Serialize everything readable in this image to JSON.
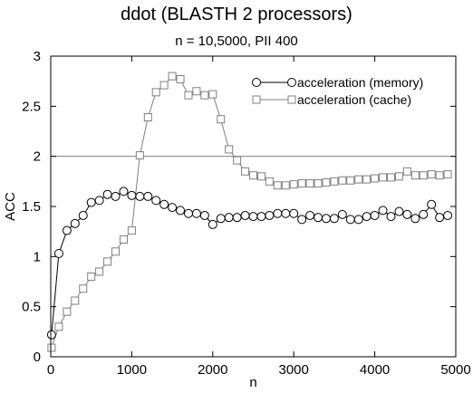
{
  "chart_data": {
    "type": "line",
    "title": "ddot (BLASTH 2 processors)",
    "subtitle": "n = 10,5000, PII 400",
    "xlabel": "n",
    "ylabel": "ACC",
    "xlim": [
      0,
      5000
    ],
    "ylim": [
      0,
      3
    ],
    "xticks": [
      0,
      1000,
      2000,
      3000,
      4000,
      5000
    ],
    "yticks": [
      0,
      0.5,
      1,
      1.5,
      2,
      2.5,
      3
    ],
    "xtick_labels": [
      "0",
      "1000",
      "2000",
      "3000",
      "4000",
      "5000"
    ],
    "ytick_labels": [
      "0",
      "0.5",
      "1",
      "1.5",
      "2",
      "2.5",
      "3"
    ],
    "grid": false,
    "reference_line": 2,
    "legend_position": "top-right",
    "series": [
      {
        "name": "acceleration (memory)",
        "marker": "circle",
        "color": "#000000",
        "x": [
          10,
          100,
          200,
          300,
          400,
          500,
          600,
          700,
          800,
          900,
          1000,
          1100,
          1200,
          1300,
          1400,
          1500,
          1600,
          1700,
          1800,
          1900,
          2000,
          2100,
          2200,
          2300,
          2400,
          2500,
          2600,
          2700,
          2800,
          2900,
          3000,
          3100,
          3200,
          3300,
          3400,
          3500,
          3600,
          3700,
          3800,
          3900,
          4000,
          4100,
          4200,
          4300,
          4400,
          4500,
          4600,
          4700,
          4800,
          4900
        ],
        "y": [
          0.22,
          1.03,
          1.26,
          1.33,
          1.41,
          1.54,
          1.56,
          1.62,
          1.6,
          1.65,
          1.61,
          1.6,
          1.6,
          1.56,
          1.52,
          1.49,
          1.46,
          1.43,
          1.43,
          1.41,
          1.32,
          1.38,
          1.39,
          1.39,
          1.41,
          1.4,
          1.4,
          1.41,
          1.43,
          1.43,
          1.43,
          1.37,
          1.41,
          1.39,
          1.38,
          1.38,
          1.42,
          1.37,
          1.37,
          1.4,
          1.41,
          1.46,
          1.4,
          1.45,
          1.42,
          1.38,
          1.42,
          1.52,
          1.39,
          1.41
        ]
      },
      {
        "name": "acceleration (cache)",
        "marker": "square",
        "color": "#808080",
        "x": [
          10,
          100,
          200,
          300,
          400,
          500,
          600,
          700,
          800,
          900,
          1000,
          1100,
          1200,
          1300,
          1400,
          1500,
          1600,
          1700,
          1800,
          1900,
          2000,
          2100,
          2200,
          2300,
          2400,
          2500,
          2600,
          2700,
          2800,
          2900,
          3000,
          3100,
          3200,
          3300,
          3400,
          3500,
          3600,
          3700,
          3800,
          3900,
          4000,
          4100,
          4200,
          4300,
          4400,
          4500,
          4600,
          4700,
          4800,
          4900
        ],
        "y": [
          0.09,
          0.3,
          0.45,
          0.56,
          0.68,
          0.8,
          0.85,
          0.95,
          1.05,
          1.17,
          1.26,
          2.01,
          2.39,
          2.64,
          2.71,
          2.8,
          2.77,
          2.61,
          2.65,
          2.61,
          2.62,
          2.37,
          2.07,
          1.96,
          1.85,
          1.81,
          1.8,
          1.75,
          1.71,
          1.71,
          1.72,
          1.73,
          1.73,
          1.73,
          1.74,
          1.75,
          1.76,
          1.76,
          1.77,
          1.77,
          1.78,
          1.79,
          1.79,
          1.8,
          1.85,
          1.81,
          1.81,
          1.82,
          1.81,
          1.82
        ]
      }
    ]
  }
}
